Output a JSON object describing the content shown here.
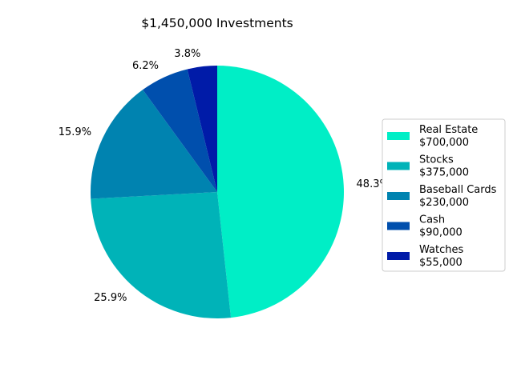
{
  "chart_data": {
    "type": "pie",
    "title": "$1,450,000 Investments",
    "categories": [
      "Real Estate",
      "Stocks",
      "Baseball Cards",
      "Cash",
      "Watches"
    ],
    "values": [
      700000,
      375000,
      230000,
      90000,
      55000
    ],
    "value_labels": [
      "$700,000",
      "$375,000",
      "$230,000",
      "$90,000",
      "$55,000"
    ],
    "percent_labels": [
      "48.3%",
      "25.9%",
      "15.9%",
      "6.2%",
      "3.8%"
    ],
    "colors": [
      "#00eec6",
      "#00b3b8",
      "#0083b0",
      "#004fad",
      "#001ba8"
    ],
    "start_angle": "top (90°)",
    "direction": "clockwise",
    "legend_position": "right"
  }
}
